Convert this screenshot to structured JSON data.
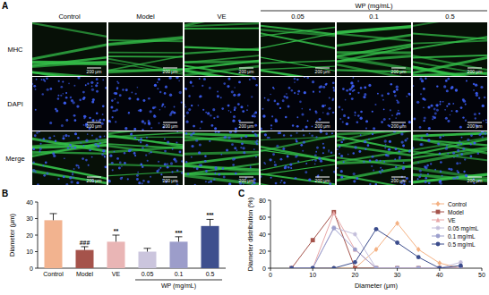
{
  "figure": {
    "panel_label": "A",
    "columns": [
      "Control",
      "Model",
      "VE",
      "0.05",
      "0.1",
      "0.5"
    ],
    "group": {
      "label": "WP (mg/mL)",
      "from": 3,
      "to": 5
    },
    "rows": [
      "MHC",
      "DAPI",
      "Merge"
    ],
    "scale_bar": "200 μm"
  },
  "chart_data": [
    {
      "type": "bar",
      "panel_label": "B",
      "categories": [
        "Control",
        "Model",
        "VE",
        "0.05",
        "0.1",
        "0.5"
      ],
      "values": [
        29,
        11,
        16,
        10,
        16,
        25.5
      ],
      "errors": [
        4,
        2,
        4,
        2,
        3,
        4
      ],
      "colors": [
        "#f2b38f",
        "#a5534b",
        "#e9b5b5",
        "#cbc5dd",
        "#9c9dca",
        "#3e4f8e"
      ],
      "significance": [
        null,
        "###",
        "**",
        null,
        "***",
        "***"
      ],
      "group": {
        "label": "WP (mg/mL)",
        "from": 3,
        "to": 5
      },
      "y_label": "Diameter (μm)",
      "ylim": [
        0,
        40
      ],
      "yticks": [
        0,
        10,
        20,
        30,
        40
      ]
    },
    {
      "type": "line",
      "panel_label": "C",
      "x": [
        5,
        10,
        15,
        20,
        25,
        30,
        35,
        40,
        45
      ],
      "series": [
        {
          "name": "Control",
          "color": "#f4b183",
          "marker": "diamond",
          "values": [
            0,
            0,
            0,
            0,
            22,
            53,
            22,
            6,
            0
          ]
        },
        {
          "name": "Model",
          "color": "#a5534b",
          "marker": "square",
          "values": [
            0,
            33,
            66,
            0,
            0,
            0,
            0,
            0,
            0
          ]
        },
        {
          "name": "VE",
          "color": "#e8a7a8",
          "marker": "triangle",
          "values": [
            0,
            0,
            65,
            22,
            0,
            0,
            0,
            0,
            0
          ]
        },
        {
          "name": "0.05 mg/mL",
          "color": "#c3bedb",
          "marker": "star",
          "values": [
            0,
            0,
            48,
            40,
            0,
            0,
            0,
            0,
            7
          ]
        },
        {
          "name": "0.1 mg/mL",
          "color": "#9c9fcd",
          "marker": "circle",
          "values": [
            0,
            0,
            47,
            22,
            0,
            0,
            0,
            0,
            0
          ]
        },
        {
          "name": "0.5 mg/mL",
          "color": "#3b4c8c",
          "marker": "circle",
          "values": [
            0,
            0,
            0,
            7,
            46,
            30,
            13,
            0,
            3
          ]
        }
      ],
      "x_label": "Diameter (μm)",
      "y_label": "Diameter distribution (%)",
      "xlim": [
        0,
        50
      ],
      "xticks": [
        0,
        10,
        20,
        30,
        40,
        50
      ],
      "ylim": [
        0,
        80
      ],
      "yticks": [
        0,
        20,
        40,
        60,
        80
      ],
      "legend": "upper right"
    }
  ]
}
